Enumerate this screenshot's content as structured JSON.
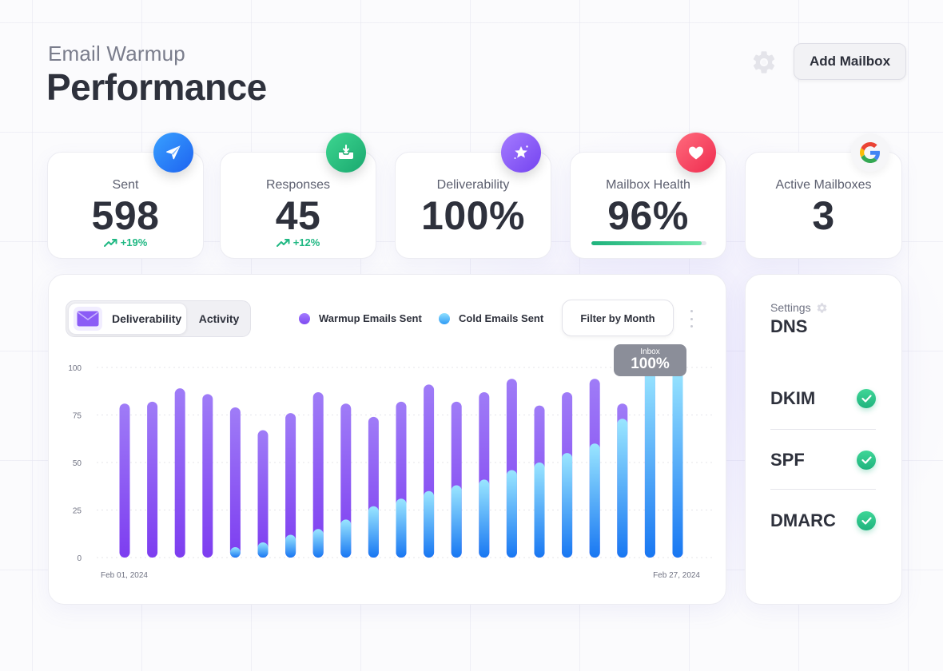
{
  "header": {
    "subtitle": "Email Warmup",
    "title": "Performance",
    "add_button_label": "Add Mailbox"
  },
  "stats": [
    {
      "label": "Sent",
      "value": "598",
      "change": "+19%",
      "icon": "send-icon",
      "color": "#2a7bf6"
    },
    {
      "label": "Responses",
      "value": "45",
      "change": "+12%",
      "icon": "inbox-icon",
      "color": "#22b57f"
    },
    {
      "label": "Deliverability",
      "value": "100%",
      "icon": "star-icon",
      "color": "#8b5cf6"
    },
    {
      "label": "Mailbox Health",
      "value": "96%",
      "health_fill": 0.96,
      "icon": "heart-icon",
      "color": "#f43f5e"
    },
    {
      "label": "Active Mailboxes",
      "value": "3",
      "icon": "google-icon"
    }
  ],
  "chart_panel": {
    "toggle": {
      "active": "Deliverability",
      "inactive": "Activity"
    },
    "legend": [
      "Warmup Emails Sent",
      "Cold Emails Sent"
    ],
    "filter_label": "Filter by Month",
    "tooltip": {
      "label": "Inbox",
      "value": "100%"
    }
  },
  "chart_data": {
    "type": "bar",
    "stacked": false,
    "title": "",
    "xlabel": "",
    "ylabel": "",
    "ylim": [
      0,
      100
    ],
    "yticks": [
      0,
      25,
      50,
      75,
      100
    ],
    "x_start_label": "Feb 01, 2024",
    "x_end_label": "Feb 27, 2024",
    "series": [
      {
        "name": "Warmup Emails Sent",
        "color": "#8b5cf6",
        "values": [
          81,
          82,
          89,
          86,
          79,
          67,
          76,
          87,
          81,
          74,
          82,
          91,
          82,
          87,
          94,
          80,
          87,
          94,
          81,
          100,
          100
        ]
      },
      {
        "name": "Cold Emails Sent",
        "color": "#38bdf8",
        "values": [
          0,
          0,
          0,
          0,
          4,
          8,
          12,
          15,
          20,
          27,
          31,
          35,
          38,
          41,
          46,
          50,
          55,
          60,
          73,
          100,
          100
        ]
      }
    ]
  },
  "dns": {
    "settings_label": "Settings",
    "title": "DNS",
    "records": [
      "DKIM",
      "SPF",
      "DMARC"
    ]
  }
}
